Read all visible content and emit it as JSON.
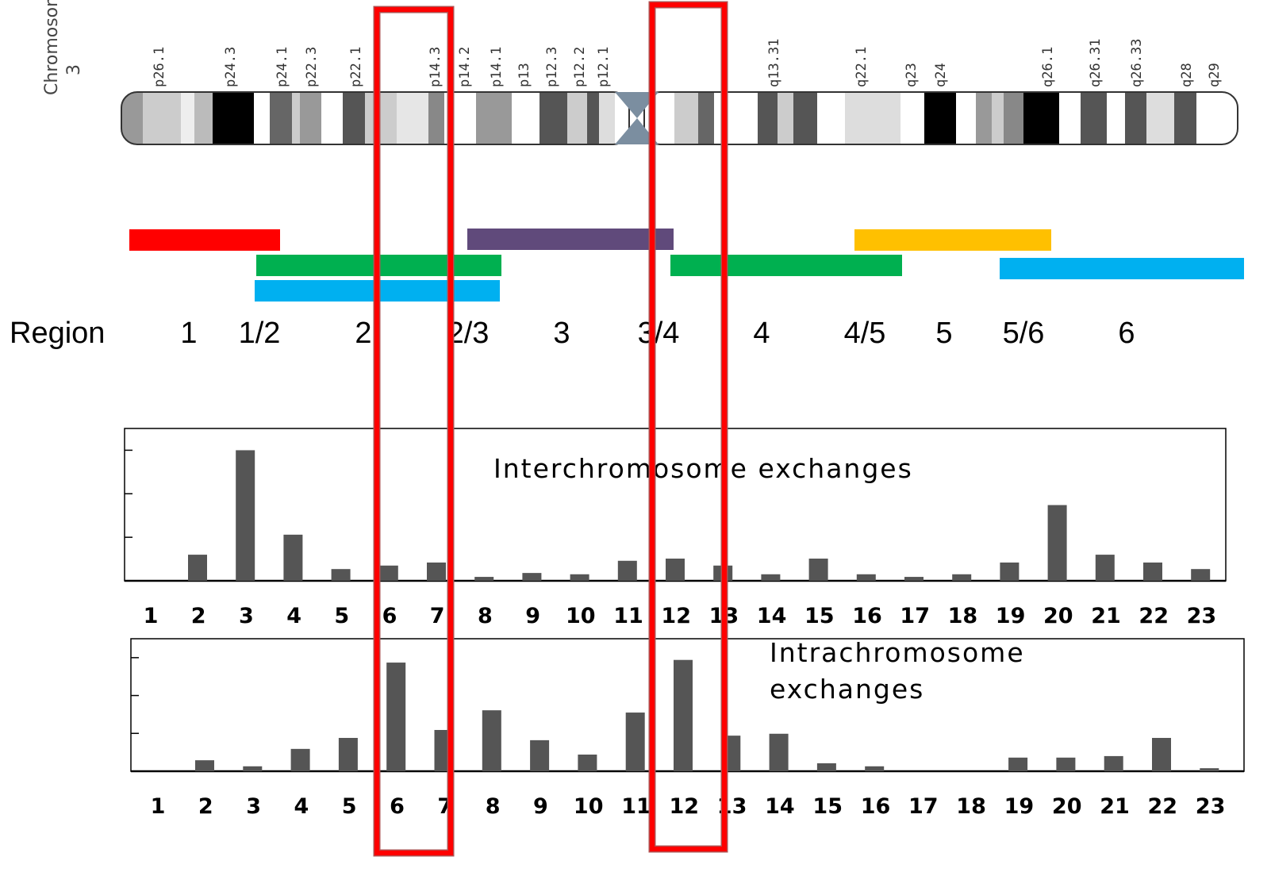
{
  "chromosome": {
    "title": "Chromosome",
    "number": "3",
    "bands": [
      "p26.1",
      "p24.3",
      "p24.1",
      "p22.3",
      "p22.1",
      "p14.3",
      "p14.2",
      "p14.1",
      "p13",
      "p12.3",
      "p12.2",
      "p12.1",
      "q13.31",
      "q22.1",
      "q23",
      "q24",
      "q26.1",
      "q26.31",
      "q26.33",
      "q28",
      "q29"
    ]
  },
  "regions": {
    "title": "Region",
    "labels": [
      "1",
      "1/2",
      "2",
      "2/3",
      "3",
      "3/4",
      "4",
      "4/5",
      "5",
      "5/6",
      "6"
    ]
  },
  "chart_data": [
    {
      "type": "bar",
      "title": "Interchromosome exchanges",
      "color": "#555555",
      "categories": [
        "1",
        "2",
        "3",
        "4",
        "5",
        "6",
        "7",
        "8",
        "9",
        "10",
        "11",
        "12",
        "13",
        "14",
        "15",
        "16",
        "17",
        "18",
        "19",
        "20",
        "21",
        "22",
        "23"
      ],
      "values": [
        0,
        0.6,
        3.0,
        1.06,
        0.27,
        0.35,
        0.42,
        0.09,
        0.18,
        0.15,
        0.46,
        0.51,
        0.35,
        0.15,
        0.51,
        0.15,
        0.09,
        0.15,
        0.42,
        1.74,
        0.6,
        0.42,
        0.27
      ],
      "ylim": [
        0,
        3.5
      ],
      "yticks": [
        1,
        2,
        3
      ]
    },
    {
      "type": "bar",
      "title": "Intrachromosome exchanges",
      "color": "#555555",
      "categories": [
        "1",
        "2",
        "3",
        "4",
        "5",
        "6",
        "7",
        "8",
        "9",
        "10",
        "11",
        "12",
        "13",
        "14",
        "15",
        "16",
        "17",
        "18",
        "19",
        "20",
        "21",
        "22",
        "23"
      ],
      "values": [
        0,
        0.29,
        0.13,
        0.59,
        0.88,
        2.87,
        1.09,
        1.61,
        0.82,
        0.44,
        1.55,
        2.94,
        0.94,
        0.99,
        0.21,
        0.13,
        0,
        0,
        0.36,
        0.36,
        0.4,
        0.88,
        0.08
      ],
      "ylim": [
        0,
        3.5
      ],
      "yticks": [
        1,
        2,
        3
      ]
    }
  ]
}
